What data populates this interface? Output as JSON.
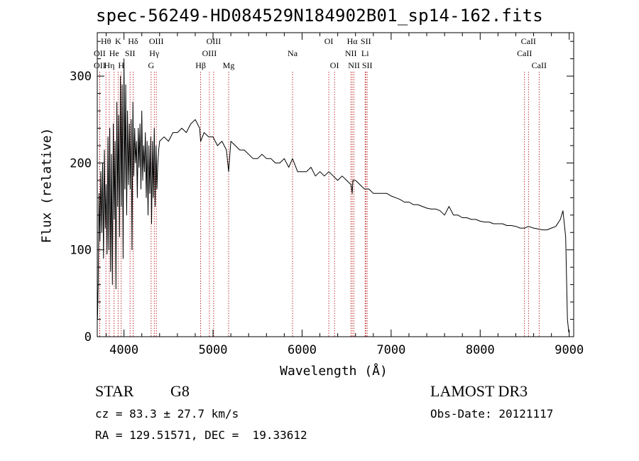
{
  "colors": {
    "spectrum": "#000000",
    "line_marker": "#b00000",
    "axis": "#000000"
  },
  "chart_data": {
    "type": "line",
    "title": "spec-56249-HD084529N184902B01_sp14-162.fits",
    "xlabel": "Wavelength (Å)",
    "ylabel": "Flux (relative)",
    "xlim": [
      3700,
      9050
    ],
    "ylim": [
      0,
      350
    ],
    "xticks": [
      4000,
      5000,
      6000,
      7000,
      8000,
      9000
    ],
    "xtick_labels": [
      "4000",
      "5000",
      "6000",
      "7000",
      "8000",
      "9000"
    ],
    "yticks": [
      0,
      100,
      200,
      300
    ],
    "ytick_labels": [
      "0",
      "100",
      "200",
      "300"
    ],
    "series": [
      {
        "name": "spectrum",
        "x": [
          3702,
          3710,
          3720,
          3730,
          3740,
          3750,
          3760,
          3770,
          3780,
          3790,
          3800,
          3810,
          3820,
          3830,
          3840,
          3850,
          3860,
          3870,
          3880,
          3890,
          3900,
          3910,
          3920,
          3930,
          3940,
          3950,
          3960,
          3970,
          3980,
          3990,
          4000,
          4010,
          4020,
          4030,
          4040,
          4050,
          4060,
          4070,
          4080,
          4090,
          4100,
          4110,
          4120,
          4130,
          4140,
          4150,
          4160,
          4170,
          4180,
          4190,
          4200,
          4210,
          4220,
          4230,
          4240,
          4250,
          4260,
          4270,
          4280,
          4290,
          4300,
          4310,
          4320,
          4330,
          4340,
          4350,
          4360,
          4370,
          4380,
          4390,
          4400,
          4450,
          4500,
          4550,
          4600,
          4650,
          4700,
          4750,
          4800,
          4850,
          4861,
          4900,
          4950,
          5000,
          5050,
          5100,
          5150,
          5175,
          5200,
          5250,
          5300,
          5350,
          5400,
          5450,
          5500,
          5550,
          5600,
          5650,
          5700,
          5750,
          5800,
          5850,
          5893,
          5950,
          6000,
          6050,
          6100,
          6150,
          6200,
          6250,
          6300,
          6350,
          6400,
          6450,
          6500,
          6550,
          6563,
          6570,
          6600,
          6650,
          6700,
          6750,
          6800,
          6850,
          6900,
          6950,
          7000,
          7050,
          7100,
          7150,
          7200,
          7250,
          7300,
          7350,
          7400,
          7450,
          7500,
          7550,
          7600,
          7650,
          7700,
          7750,
          7800,
          7850,
          7900,
          7950,
          8000,
          8050,
          8100,
          8150,
          8200,
          8250,
          8300,
          8350,
          8400,
          8450,
          8500,
          8542,
          8600,
          8650,
          8700,
          8750,
          8800,
          8850,
          8900,
          8930,
          8960,
          8980,
          8995
        ],
        "y": [
          20,
          60,
          165,
          110,
          190,
          120,
          200,
          90,
          215,
          125,
          175,
          95,
          230,
          100,
          240,
          75,
          210,
          60,
          245,
          135,
          225,
          55,
          270,
          150,
          255,
          115,
          300,
          150,
          290,
          90,
          320,
          170,
          290,
          140,
          260,
          175,
          245,
          170,
          250,
          100,
          270,
          185,
          240,
          200,
          225,
          160,
          240,
          195,
          245,
          170,
          260,
          180,
          220,
          190,
          235,
          160,
          225,
          140,
          220,
          165,
          230,
          130,
          225,
          160,
          240,
          150,
          220,
          170,
          200,
          215,
          225,
          230,
          225,
          235,
          235,
          240,
          235,
          245,
          250,
          240,
          225,
          235,
          230,
          230,
          220,
          225,
          215,
          190,
          225,
          220,
          215,
          215,
          210,
          205,
          205,
          210,
          205,
          205,
          200,
          200,
          205,
          195,
          205,
          190,
          190,
          190,
          195,
          185,
          190,
          185,
          190,
          185,
          180,
          185,
          180,
          175,
          165,
          180,
          180,
          175,
          170,
          170,
          165,
          165,
          165,
          165,
          162,
          160,
          158,
          155,
          155,
          152,
          152,
          150,
          148,
          147,
          147,
          145,
          140,
          150,
          140,
          140,
          137,
          137,
          135,
          135,
          133,
          132,
          132,
          130,
          130,
          130,
          128,
          128,
          127,
          125,
          125,
          127,
          125,
          124,
          123,
          123,
          125,
          127,
          135,
          145,
          115,
          20,
          5
        ]
      }
    ],
    "line_markers": [
      {
        "label": "Hθ",
        "x": 3797,
        "row": 1
      },
      {
        "label": "OII",
        "x": 3727,
        "row": 2
      },
      {
        "label": "OII",
        "x": 3727,
        "row": 3
      },
      {
        "label": "He",
        "x": 3889,
        "row": 2
      },
      {
        "label": "Hη",
        "x": 3835,
        "row": 3
      },
      {
        "label": "K",
        "x": 3934,
        "row": 1
      },
      {
        "label": "SII",
        "x": 4068,
        "row": 2
      },
      {
        "label": "H",
        "x": 3969,
        "row": 3
      },
      {
        "label": "Hδ",
        "x": 4102,
        "row": 1
      },
      {
        "label": "OIII",
        "x": 4363,
        "row": 1
      },
      {
        "label": "Hγ",
        "x": 4340,
        "row": 2
      },
      {
        "label": "G",
        "x": 4305,
        "row": 3
      },
      {
        "label": "Hβ",
        "x": 4861,
        "row": 3
      },
      {
        "label": "OIII",
        "x": 5007,
        "row": 1
      },
      {
        "label": "OIII",
        "x": 4959,
        "row": 2
      },
      {
        "label": "Mg",
        "x": 5175,
        "row": 3
      },
      {
        "label": "Na",
        "x": 5893,
        "row": 2
      },
      {
        "label": "OI",
        "x": 6300,
        "row": 1
      },
      {
        "label": "OI",
        "x": 6364,
        "row": 3
      },
      {
        "label": "Hα",
        "x": 6563,
        "row": 1
      },
      {
        "label": "NII",
        "x": 6548,
        "row": 2
      },
      {
        "label": "NII",
        "x": 6583,
        "row": 3
      },
      {
        "label": "SII",
        "x": 6716,
        "row": 1
      },
      {
        "label": "Li",
        "x": 6708,
        "row": 2
      },
      {
        "label": "SII",
        "x": 6731,
        "row": 3
      },
      {
        "label": "CaII",
        "x": 8542,
        "row": 1
      },
      {
        "label": "CaII",
        "x": 8498,
        "row": 2
      },
      {
        "label": "CaII",
        "x": 8662,
        "row": 3
      }
    ]
  },
  "info": {
    "object_class": "STAR",
    "subclass": "G8",
    "survey": "LAMOST DR3",
    "cz": "cz = 83.3 ± 27.7 km/s",
    "obs_date": "Obs-Date: 20121117",
    "coords": "RA = 129.51571, DEC =  19.33612"
  }
}
